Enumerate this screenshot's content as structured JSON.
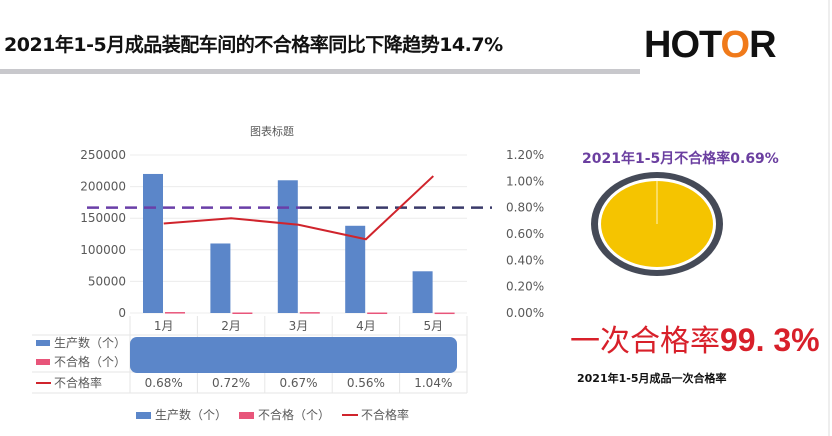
{
  "header": {
    "title": "2021年1-5月成品装配车间的不合格率同比下降趋势14.7%",
    "logo_text": "HOTOR"
  },
  "chart_data": {
    "type": "bar",
    "title": "图表标题",
    "categories": [
      "1月",
      "2月",
      "3月",
      "4月",
      "5月"
    ],
    "series": [
      {
        "name": "生产数（个）",
        "type": "bar",
        "axis": "left",
        "color": "#5b86c9",
        "values": [
          220000,
          110000,
          210000,
          138000,
          66000
        ]
      },
      {
        "name": "不合格（个）",
        "type": "bar",
        "axis": "left",
        "color": "#e8557a",
        "values": [
          1500,
          800,
          1400,
          770,
          690
        ]
      },
      {
        "name": "不合格率",
        "type": "line",
        "axis": "right",
        "color": "#d0242c",
        "values": [
          0.68,
          0.72,
          0.67,
          0.56,
          1.04
        ],
        "labels": [
          "0.68%",
          "0.72%",
          "0.67%",
          "0.56%",
          "1.04%"
        ]
      }
    ],
    "left_axis": {
      "ylim": [
        0,
        250000
      ],
      "ticks": [
        "0",
        "50000",
        "100000",
        "150000",
        "200000",
        "250000"
      ]
    },
    "right_axis": {
      "ylim": [
        0,
        1.2
      ],
      "ticks": [
        "0.00%",
        "0.20%",
        "0.40%",
        "0.60%",
        "0.80%",
        "1.00%",
        "1.20%"
      ]
    },
    "reference_line": {
      "value": 0.8,
      "axis": "right",
      "style": "dashed",
      "color": "#5a3a9a"
    },
    "grid": true,
    "legend": "bottom",
    "data_table": true,
    "table_rows": [
      "生产数（个）",
      "不合格（个）",
      "不合格率"
    ]
  },
  "summary": {
    "rate_title": "2021年1-5月不合格率0.69%",
    "pie": {
      "defect_percent": 0.69,
      "pass_percent": 99.31,
      "fill_color": "#f5c400",
      "ring_color": "#454a57"
    },
    "first_pass_label": "一次合格率",
    "first_pass_value": "99. 3%",
    "caption": "2021年1-5月成品一次合格率"
  }
}
